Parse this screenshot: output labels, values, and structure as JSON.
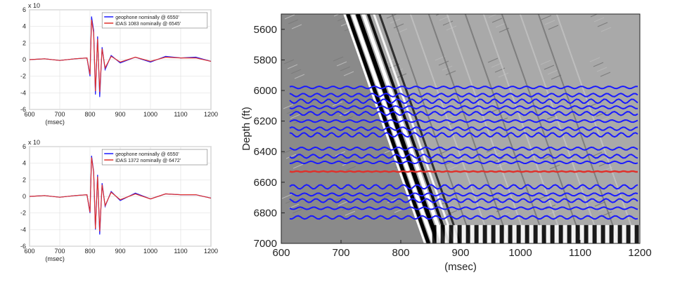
{
  "chart_data": [
    {
      "type": "line",
      "panel": "top-left",
      "exponent_label": "x 10",
      "xlabel": "(msec)",
      "xticks": [
        600,
        700,
        800,
        900,
        1000,
        1100,
        1200
      ],
      "yticks": [
        6,
        4,
        2,
        0,
        -2,
        -4,
        -6
      ],
      "xlim": [
        600,
        1200
      ],
      "ylim": [
        -6,
        6
      ],
      "grid": true,
      "legend_position": "top-right",
      "series": [
        {
          "name": "geophone nominally @ 6550'",
          "color": "#1a1aff",
          "x": [
            600,
            650,
            700,
            750,
            790,
            800,
            805,
            812,
            818,
            825,
            832,
            840,
            850,
            870,
            900,
            950,
            1000,
            1050,
            1100,
            1150,
            1200
          ],
          "y": [
            0,
            0.1,
            -0.1,
            0.1,
            0.2,
            -2.0,
            5.2,
            3.5,
            -4.2,
            2.8,
            -4.5,
            1.5,
            -1.2,
            0.5,
            -0.4,
            0.3,
            -0.3,
            0.4,
            0.2,
            0.3,
            -0.2
          ]
        },
        {
          "name": "iDAS 1083 nominally @ 6545'",
          "color": "#e0302a",
          "x": [
            600,
            650,
            700,
            750,
            790,
            800,
            805,
            812,
            818,
            825,
            832,
            840,
            850,
            870,
            900,
            950,
            1000,
            1050,
            1100,
            1150,
            1200
          ],
          "y": [
            0,
            0.1,
            -0.1,
            0.1,
            0.2,
            -1.8,
            4.8,
            3.2,
            -3.8,
            2.5,
            -3.9,
            1.3,
            -1.0,
            0.4,
            -0.3,
            0.3,
            -0.2,
            0.3,
            0.2,
            0.2,
            -0.2
          ]
        }
      ]
    },
    {
      "type": "line",
      "panel": "bottom-left",
      "exponent_label": "x 10",
      "xlabel": "(msec)",
      "xticks": [
        600,
        700,
        800,
        900,
        1000,
        1100,
        1200
      ],
      "yticks": [
        6,
        4,
        2,
        0,
        -2,
        -4,
        -6
      ],
      "xlim": [
        600,
        1200
      ],
      "ylim": [
        -6,
        6
      ],
      "grid": true,
      "legend_position": "top-right",
      "series": [
        {
          "name": "geophone nominally @ 6550'",
          "color": "#1a1aff",
          "x": [
            600,
            650,
            700,
            750,
            790,
            800,
            805,
            812,
            818,
            825,
            832,
            840,
            850,
            870,
            900,
            950,
            1000,
            1050,
            1100,
            1150,
            1200
          ],
          "y": [
            0,
            0.1,
            -0.1,
            0.1,
            0.2,
            -2.0,
            4.9,
            3.0,
            -4.0,
            2.6,
            -4.6,
            1.6,
            -1.2,
            0.6,
            -0.5,
            0.4,
            -0.3,
            0.3,
            0.2,
            0.2,
            -0.2
          ]
        },
        {
          "name": "iDAS 1372 nominally @ 6472'",
          "color": "#e0302a",
          "x": [
            600,
            650,
            700,
            750,
            790,
            800,
            805,
            812,
            818,
            825,
            832,
            840,
            850,
            870,
            900,
            950,
            1000,
            1050,
            1100,
            1150,
            1200
          ],
          "y": [
            0,
            0.1,
            -0.1,
            0.1,
            0.2,
            -1.9,
            4.7,
            2.9,
            -3.9,
            2.4,
            -4.2,
            1.4,
            -1.1,
            0.5,
            -0.4,
            0.3,
            -0.3,
            0.3,
            0.2,
            0.2,
            -0.2
          ]
        }
      ]
    },
    {
      "type": "heatmap",
      "panel": "right",
      "ylabel": "Depth (ft)",
      "xlabel": "(msec)",
      "xlim": [
        600,
        1200
      ],
      "ylim": [
        7000,
        5500
      ],
      "xticks": [
        600,
        700,
        800,
        900,
        1000,
        1100,
        1200
      ],
      "yticks": [
        5600,
        5800,
        6000,
        6200,
        6400,
        6600,
        6800,
        7000
      ],
      "first_arrival": {
        "x": [
          715,
          850
        ],
        "depth": [
          5500,
          7000
        ]
      },
      "overlay_trace_depths_ft": [
        5980,
        6030,
        6070,
        6110,
        6150,
        6200,
        6250,
        6290,
        6380,
        6430,
        6470,
        6530,
        6630,
        6680,
        6720,
        6770,
        6830
      ],
      "overlay_color": "#1a1aff",
      "highlight_trace_depth_ft": 6530,
      "highlight_color": "#e0302a"
    }
  ]
}
